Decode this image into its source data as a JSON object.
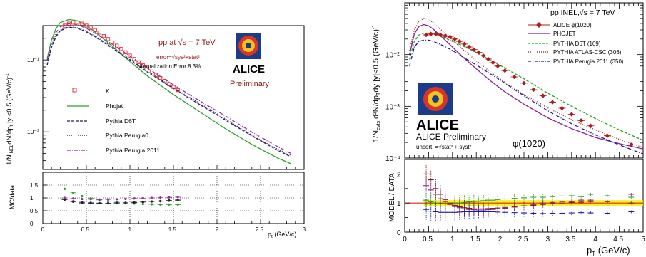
{
  "chart_data": [
    {
      "type": "line",
      "panel": "left-top",
      "xlabel": "p_t (GeV/c)",
      "ylabel": "1/N_INEL dN/dp_t |y|<0.5 (GeV/c)^-1",
      "xlim": [
        0,
        3
      ],
      "ylim": [
        0.003,
        0.3
      ],
      "yscale": "log",
      "x_ticks": [
        "0",
        "0.5",
        "1",
        "1.5",
        "2",
        "2.5",
        "3"
      ],
      "y_ticks": [
        "10^-2",
        "10^-1"
      ],
      "title": "pp at √s = 7 TeV",
      "subtitle": "error=√sys²+stat²",
      "norm_note": "Normalization Error 8.3%",
      "logo": "ALICE",
      "badge": "Preliminary",
      "legend": [
        "K⁻",
        "Phojet",
        "Pythia D6T",
        "Pythia Perugia0",
        "Pythia Perugia 2011"
      ],
      "legend_placement": "left",
      "series": [
        {
          "name": "K⁻",
          "color": "#e0303a",
          "style": "open-square",
          "x": [
            0.25,
            0.3,
            0.35,
            0.4,
            0.45,
            0.5,
            0.55,
            0.6,
            0.65,
            0.7,
            0.75,
            0.8,
            0.85,
            0.9,
            0.95,
            1.0,
            1.05,
            1.1,
            1.15,
            1.2,
            1.25,
            1.3,
            1.35,
            1.4,
            1.45,
            1.5,
            1.55
          ],
          "y": [
            0.3,
            0.32,
            0.33,
            0.33,
            0.32,
            0.3,
            0.28,
            0.26,
            0.24,
            0.215,
            0.195,
            0.175,
            0.158,
            0.142,
            0.128,
            0.115,
            0.103,
            0.093,
            0.084,
            0.076,
            0.069,
            0.062,
            0.056,
            0.051,
            0.046,
            0.042,
            0.038
          ]
        },
        {
          "name": "Phojet",
          "color": "#2ca02c",
          "style": "solid",
          "x": [
            0.05,
            0.1,
            0.15,
            0.2,
            0.3,
            0.4,
            0.5,
            0.6,
            0.8,
            1.0,
            1.2,
            1.5,
            1.8,
            2.1,
            2.4,
            2.7,
            2.85
          ],
          "y": [
            0.105,
            0.19,
            0.27,
            0.33,
            0.365,
            0.35,
            0.3,
            0.245,
            0.155,
            0.095,
            0.06,
            0.033,
            0.019,
            0.011,
            0.0067,
            0.0043,
            0.0036
          ]
        },
        {
          "name": "Pythia D6T",
          "color": "#1a1a80",
          "style": "dashed",
          "x": [
            0.05,
            0.1,
            0.15,
            0.2,
            0.3,
            0.4,
            0.5,
            0.6,
            0.8,
            1.0,
            1.2,
            1.5,
            1.8,
            2.1,
            2.4,
            2.7,
            2.85
          ],
          "y": [
            0.085,
            0.15,
            0.21,
            0.255,
            0.285,
            0.275,
            0.245,
            0.21,
            0.145,
            0.1,
            0.068,
            0.04,
            0.024,
            0.0145,
            0.0088,
            0.0055,
            0.0045
          ]
        },
        {
          "name": "Pythia Perugia0",
          "color": "#222222",
          "style": "dotted",
          "x": [
            0.05,
            0.1,
            0.15,
            0.2,
            0.3,
            0.4,
            0.5,
            0.6,
            0.8,
            1.0,
            1.2,
            1.5,
            1.8,
            2.1,
            2.4,
            2.7,
            2.85
          ],
          "y": [
            0.09,
            0.16,
            0.22,
            0.26,
            0.29,
            0.28,
            0.25,
            0.215,
            0.15,
            0.103,
            0.07,
            0.041,
            0.025,
            0.015,
            0.009,
            0.0057,
            0.0047
          ]
        },
        {
          "name": "Pythia Perugia 2011",
          "color": "#9a2c9a",
          "style": "dashdot",
          "x": [
            0.05,
            0.1,
            0.15,
            0.2,
            0.3,
            0.4,
            0.5,
            0.6,
            0.8,
            1.0,
            1.2,
            1.5,
            1.8,
            2.1,
            2.4,
            2.7,
            2.85
          ],
          "y": [
            0.1,
            0.175,
            0.24,
            0.29,
            0.32,
            0.31,
            0.275,
            0.235,
            0.165,
            0.113,
            0.077,
            0.045,
            0.027,
            0.0165,
            0.0099,
            0.0062,
            0.005
          ]
        }
      ]
    },
    {
      "type": "scatter",
      "panel": "left-bottom",
      "xlabel": "p_t (GeV/c)",
      "ylabel": "MC/data",
      "xlim": [
        0,
        3
      ],
      "ylim": [
        0,
        2
      ],
      "y_ticks": [
        "0",
        "0.5",
        "1",
        "1.5"
      ],
      "x_ticks": [
        "0",
        "0.5",
        "1",
        "1.5",
        "2",
        "2.5",
        "3"
      ],
      "series": [
        {
          "name": "Phojet",
          "color": "#2ca02c",
          "x": [
            0.25,
            0.35,
            0.45,
            0.55,
            0.65,
            0.75,
            0.85,
            0.95,
            1.05,
            1.15,
            1.25,
            1.35,
            1.45,
            1.55
          ],
          "y": [
            1.35,
            1.2,
            1.07,
            0.98,
            0.92,
            0.87,
            0.83,
            0.8,
            0.78,
            0.76,
            0.75,
            0.74,
            0.74,
            0.74
          ]
        },
        {
          "name": "Pythia D6T",
          "color": "#1a1a80",
          "x": [
            0.25,
            0.35,
            0.45,
            0.55,
            0.65,
            0.75,
            0.85,
            0.95,
            1.05,
            1.15,
            1.25,
            1.35,
            1.45,
            1.55
          ],
          "y": [
            0.95,
            0.87,
            0.83,
            0.81,
            0.8,
            0.79,
            0.8,
            0.81,
            0.83,
            0.84,
            0.86,
            0.88,
            0.9,
            0.92
          ]
        },
        {
          "name": "Pythia Perugia0",
          "color": "#222222",
          "x": [
            0.25,
            0.35,
            0.45,
            0.55,
            0.65,
            0.75,
            0.85,
            0.95,
            1.05,
            1.15,
            1.25,
            1.35,
            1.45,
            1.55
          ],
          "y": [
            0.93,
            0.85,
            0.8,
            0.79,
            0.79,
            0.79,
            0.8,
            0.81,
            0.82,
            0.84,
            0.86,
            0.87,
            0.89,
            0.91
          ]
        },
        {
          "name": "Pythia Perugia 2011",
          "color": "#9a2c9a",
          "x": [
            0.25,
            0.35,
            0.45,
            0.55,
            0.65,
            0.75,
            0.85,
            0.95,
            1.05,
            1.15,
            1.25,
            1.35,
            1.45,
            1.55
          ],
          "y": [
            1.0,
            0.98,
            0.96,
            0.95,
            0.94,
            0.94,
            0.95,
            0.96,
            0.98,
            0.99,
            1.0,
            1.01,
            1.02,
            1.03
          ]
        }
      ]
    },
    {
      "type": "line",
      "panel": "right-top",
      "xlabel": "",
      "ylabel": "1/N_evts d²N/dp_T dy |y|<0.5 (GeV/c)^-1",
      "xlim": [
        0,
        5
      ],
      "ylim": [
        0.0001,
        0.1
      ],
      "yscale": "log",
      "y_ticks": [
        "10^-4",
        "10^-3",
        "10^-2"
      ],
      "title": "pp INEL,√s = 7 TeV",
      "legend": [
        "ALICE φ(1020)",
        "PHOJET",
        "PYTHIA D6T (109)",
        "PYTHIA ATLAS-CSC (306)",
        "PYTHIA Perugia 2011 (350)"
      ],
      "legend_placement": "top-right",
      "logo": "ALICE",
      "badge": "ALICE Preliminary",
      "uncert_note": "uncert. =√stat² + syst²",
      "particle": "φ(1020)",
      "series": [
        {
          "name": "ALICE φ(1020)",
          "color": "#b01c1c",
          "style": "diamond",
          "x": [
            0.45,
            0.55,
            0.65,
            0.75,
            0.85,
            0.95,
            1.05,
            1.15,
            1.25,
            1.35,
            1.45,
            1.55,
            1.65,
            1.75,
            1.85,
            1.95,
            2.1,
            2.3,
            2.5,
            2.7,
            2.9,
            3.1,
            3.3,
            3.5,
            3.7,
            3.9,
            4.25,
            4.75
          ],
          "y": [
            0.024,
            0.025,
            0.025,
            0.024,
            0.023,
            0.022,
            0.02,
            0.018,
            0.016,
            0.014,
            0.0125,
            0.011,
            0.0095,
            0.0082,
            0.007,
            0.006,
            0.0049,
            0.0037,
            0.0028,
            0.0021,
            0.0016,
            0.0012,
            0.00092,
            0.0007,
            0.00053,
            0.00042,
            0.00027,
            0.00018
          ]
        },
        {
          "name": "PHOJET",
          "color": "#8b1f8b",
          "style": "solid",
          "x": [
            0.1,
            0.2,
            0.3,
            0.4,
            0.5,
            0.6,
            0.8,
            1.0,
            1.2,
            1.5,
            1.8,
            2.1,
            2.5,
            3.0,
            3.5,
            4.0,
            4.5,
            5.0
          ],
          "y": [
            0.01,
            0.025,
            0.035,
            0.038,
            0.036,
            0.031,
            0.021,
            0.014,
            0.0093,
            0.0053,
            0.0031,
            0.0019,
            0.0011,
            0.0006,
            0.00037,
            0.00025,
            0.00019,
            0.00015
          ]
        },
        {
          "name": "PYTHIA D6T (109)",
          "color": "#2ca02c",
          "style": "dashed",
          "x": [
            0.1,
            0.2,
            0.3,
            0.4,
            0.5,
            0.6,
            0.8,
            1.0,
            1.2,
            1.5,
            1.8,
            2.1,
            2.5,
            3.0,
            3.5,
            4.0,
            4.5,
            5.0
          ],
          "y": [
            0.008,
            0.018,
            0.024,
            0.026,
            0.026,
            0.025,
            0.022,
            0.018,
            0.015,
            0.011,
            0.0078,
            0.0055,
            0.0034,
            0.0018,
            0.001,
            0.00058,
            0.00035,
            0.00022
          ]
        },
        {
          "name": "PYTHIA ATLAS-CSC (306)",
          "color": "#7a1f1f",
          "style": "dotted",
          "x": [
            0.1,
            0.2,
            0.3,
            0.4,
            0.5,
            0.6,
            0.8,
            1.0,
            1.2,
            1.5,
            1.8,
            2.1,
            2.5,
            3.0,
            3.5,
            4.0,
            4.5,
            5.0
          ],
          "y": [
            0.012,
            0.03,
            0.044,
            0.05,
            0.048,
            0.041,
            0.028,
            0.019,
            0.013,
            0.0076,
            0.0046,
            0.0029,
            0.0017,
            0.00093,
            0.00055,
            0.00035,
            0.00023,
            0.00016
          ]
        },
        {
          "name": "PYTHIA Perugia 2011 (350)",
          "color": "#1a1a9a",
          "style": "dashdot",
          "x": [
            0.1,
            0.2,
            0.3,
            0.4,
            0.5,
            0.6,
            0.8,
            1.0,
            1.2,
            1.5,
            1.8,
            2.1,
            2.5,
            3.0,
            3.5,
            4.0,
            4.5,
            5.0
          ],
          "y": [
            0.006,
            0.014,
            0.018,
            0.019,
            0.019,
            0.018,
            0.015,
            0.012,
            0.0092,
            0.0063,
            0.0042,
            0.0028,
            0.0016,
            0.00082,
            0.00046,
            0.00028,
            0.00018,
            0.00012
          ]
        }
      ]
    },
    {
      "type": "scatter",
      "panel": "right-bottom",
      "xlabel": "p_T (GeV/c)",
      "ylabel": "MODEL / DATA",
      "xlim": [
        0,
        5
      ],
      "ylim": [
        0,
        2.5
      ],
      "y_ticks": [
        "0",
        "1",
        "2"
      ],
      "x_ticks": [
        "0",
        "0.5",
        "1",
        "1.5",
        "2",
        "2.5",
        "3",
        "3.5",
        "4",
        "4.5",
        "5"
      ],
      "band": {
        "y_low": 0.9,
        "y_high": 1.1,
        "color": "#f5f000"
      },
      "series": [
        {
          "name": "PHOJET",
          "color": "#8b1f8b",
          "x": [
            0.45,
            0.55,
            0.65,
            0.75,
            0.85,
            0.95,
            1.05,
            1.15,
            1.25,
            1.35,
            1.45,
            1.55,
            1.65,
            1.75,
            1.85,
            1.95,
            2.1,
            2.3,
            2.5,
            2.7,
            2.9,
            3.1,
            3.3,
            3.5,
            3.7,
            3.9,
            4.25,
            4.75
          ],
          "y": [
            1.6,
            1.45,
            1.3,
            1.15,
            1.05,
            0.95,
            0.88,
            0.84,
            0.8,
            0.78,
            0.77,
            0.76,
            0.76,
            0.77,
            0.78,
            0.8,
            0.82,
            0.86,
            0.9,
            0.95,
            1.0,
            1.02,
            1.05,
            1.05,
            1.1,
            1.1,
            1.05,
            1.3
          ]
        },
        {
          "name": "PYTHIA D6T (109)",
          "color": "#2ca02c",
          "x": [
            0.45,
            0.55,
            0.65,
            0.75,
            0.85,
            0.95,
            1.05,
            1.15,
            1.25,
            1.35,
            1.45,
            1.55,
            1.65,
            1.75,
            1.85,
            1.95,
            2.1,
            2.3,
            2.5,
            2.7,
            2.9,
            3.1,
            3.3,
            3.5,
            3.7,
            3.9,
            4.25,
            4.75
          ],
          "y": [
            1.1,
            1.04,
            1.0,
            0.98,
            0.98,
            0.98,
            0.99,
            1.0,
            1.02,
            1.04,
            1.05,
            1.06,
            1.08,
            1.1,
            1.1,
            1.12,
            1.14,
            1.16,
            1.18,
            1.2,
            1.2,
            1.22,
            1.24,
            1.25,
            1.22,
            1.3,
            1.25,
            1.2
          ]
        },
        {
          "name": "PYTHIA ATLAS-CSC (306)",
          "color": "#7a1f1f",
          "x": [
            0.45,
            0.55,
            0.65,
            0.75,
            0.85,
            0.95,
            1.05,
            1.15,
            1.25,
            1.35,
            1.45,
            1.55,
            1.65,
            1.75,
            1.85,
            1.95,
            2.1,
            2.3,
            2.5,
            2.7,
            2.9,
            3.1,
            3.3,
            3.5,
            3.7,
            3.9,
            4.25,
            4.75
          ],
          "y": [
            2.0,
            1.8,
            1.5,
            1.3,
            1.12,
            1.0,
            0.92,
            0.87,
            0.84,
            0.82,
            0.8,
            0.8,
            0.8,
            0.81,
            0.82,
            0.83,
            0.85,
            0.88,
            0.9,
            0.92,
            0.95,
            0.98,
            1.0,
            1.02,
            1.03,
            1.05,
            1.05,
            1.0
          ]
        },
        {
          "name": "PYTHIA Perugia 2011 (350)",
          "color": "#1a1a9a",
          "x": [
            0.45,
            0.55,
            0.65,
            0.75,
            0.85,
            0.95,
            1.05,
            1.15,
            1.25,
            1.35,
            1.45,
            1.55,
            1.65,
            1.75,
            1.85,
            1.95,
            2.1,
            2.3,
            2.5,
            2.7,
            2.9,
            3.1,
            3.3,
            3.5,
            3.7,
            3.9,
            4.25,
            4.75
          ],
          "y": [
            0.78,
            0.72,
            0.7,
            0.68,
            0.68,
            0.68,
            0.68,
            0.69,
            0.7,
            0.7,
            0.7,
            0.7,
            0.7,
            0.7,
            0.7,
            0.69,
            0.68,
            0.67,
            0.66,
            0.65,
            0.64,
            0.65,
            0.65,
            0.66,
            0.67,
            0.66,
            0.65,
            0.7
          ]
        }
      ]
    }
  ]
}
